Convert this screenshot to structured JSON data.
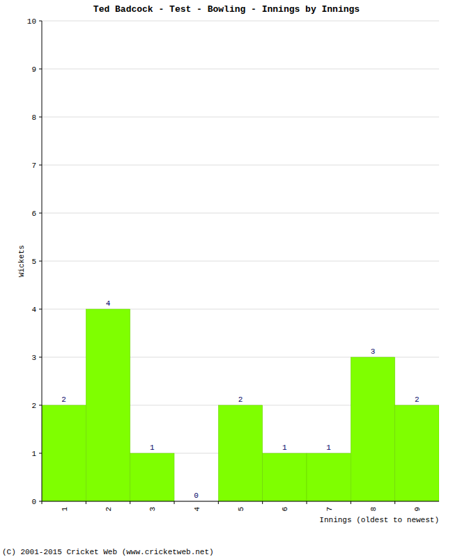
{
  "chart_data": {
    "type": "bar",
    "title": "Ted Badcock - Test - Bowling - Innings by Innings",
    "x_label": "Innings (oldest to newest)",
    "y_label": "Wickets",
    "annotations": [
      "(C) 2001-2015 Cricket Web (www.cricketweb.net)"
    ],
    "categories": [
      "1",
      "2",
      "3",
      "4",
      "5",
      "6",
      "7",
      "8",
      "9"
    ],
    "values": [
      2,
      4,
      1,
      0,
      2,
      1,
      1,
      3,
      2
    ],
    "color": "#7fff00",
    "ylim": [
      0,
      10
    ],
    "yticks": [
      0,
      1,
      2,
      3,
      4,
      5,
      6,
      7,
      8,
      9,
      10
    ],
    "grid": true,
    "data_labels": true
  }
}
